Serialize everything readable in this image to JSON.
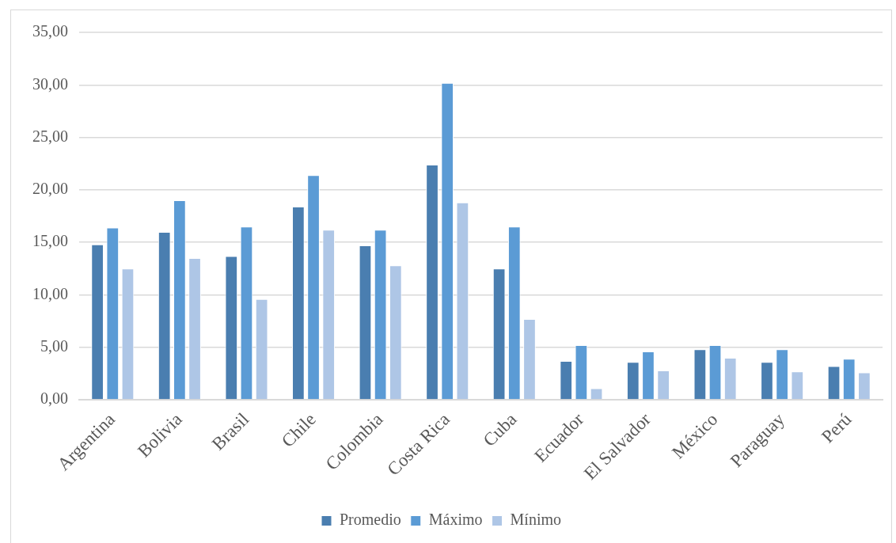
{
  "chart_data": {
    "type": "bar",
    "categories": [
      "Argentina",
      "Bolivia",
      "Brasil",
      "Chile",
      "Colombia",
      "Costa Rica",
      "Cuba",
      "Ecuador",
      "El Salvador",
      "México",
      "Paraguay",
      "Perú"
    ],
    "series": [
      {
        "name": "Promedio",
        "color": "#4a7eb0",
        "values": [
          14.8,
          16.0,
          13.7,
          18.4,
          14.7,
          22.4,
          12.5,
          3.7,
          3.6,
          4.8,
          3.6,
          3.2
        ]
      },
      {
        "name": "Máximo",
        "color": "#5b9bd5",
        "values": [
          16.4,
          19.0,
          16.5,
          21.4,
          16.2,
          30.2,
          16.5,
          5.2,
          4.6,
          5.2,
          4.8,
          3.9
        ]
      },
      {
        "name": "Mínimo",
        "color": "#aec6e6",
        "values": [
          12.5,
          13.5,
          9.6,
          16.2,
          12.8,
          18.8,
          7.7,
          1.1,
          2.8,
          4.0,
          2.7,
          2.6
        ]
      }
    ],
    "ylim": [
      0,
      35
    ],
    "yticks": [
      {
        "value": 0,
        "label": "0,00"
      },
      {
        "value": 5,
        "label": "5,00"
      },
      {
        "value": 10,
        "label": "10,00"
      },
      {
        "value": 15,
        "label": "15,00"
      },
      {
        "value": 20,
        "label": "20,00"
      },
      {
        "value": 25,
        "label": "25,00"
      },
      {
        "value": 30,
        "label": "30,00"
      },
      {
        "value": 35,
        "label": "35,00"
      }
    ],
    "grid": "y",
    "legend": "bottom"
  }
}
